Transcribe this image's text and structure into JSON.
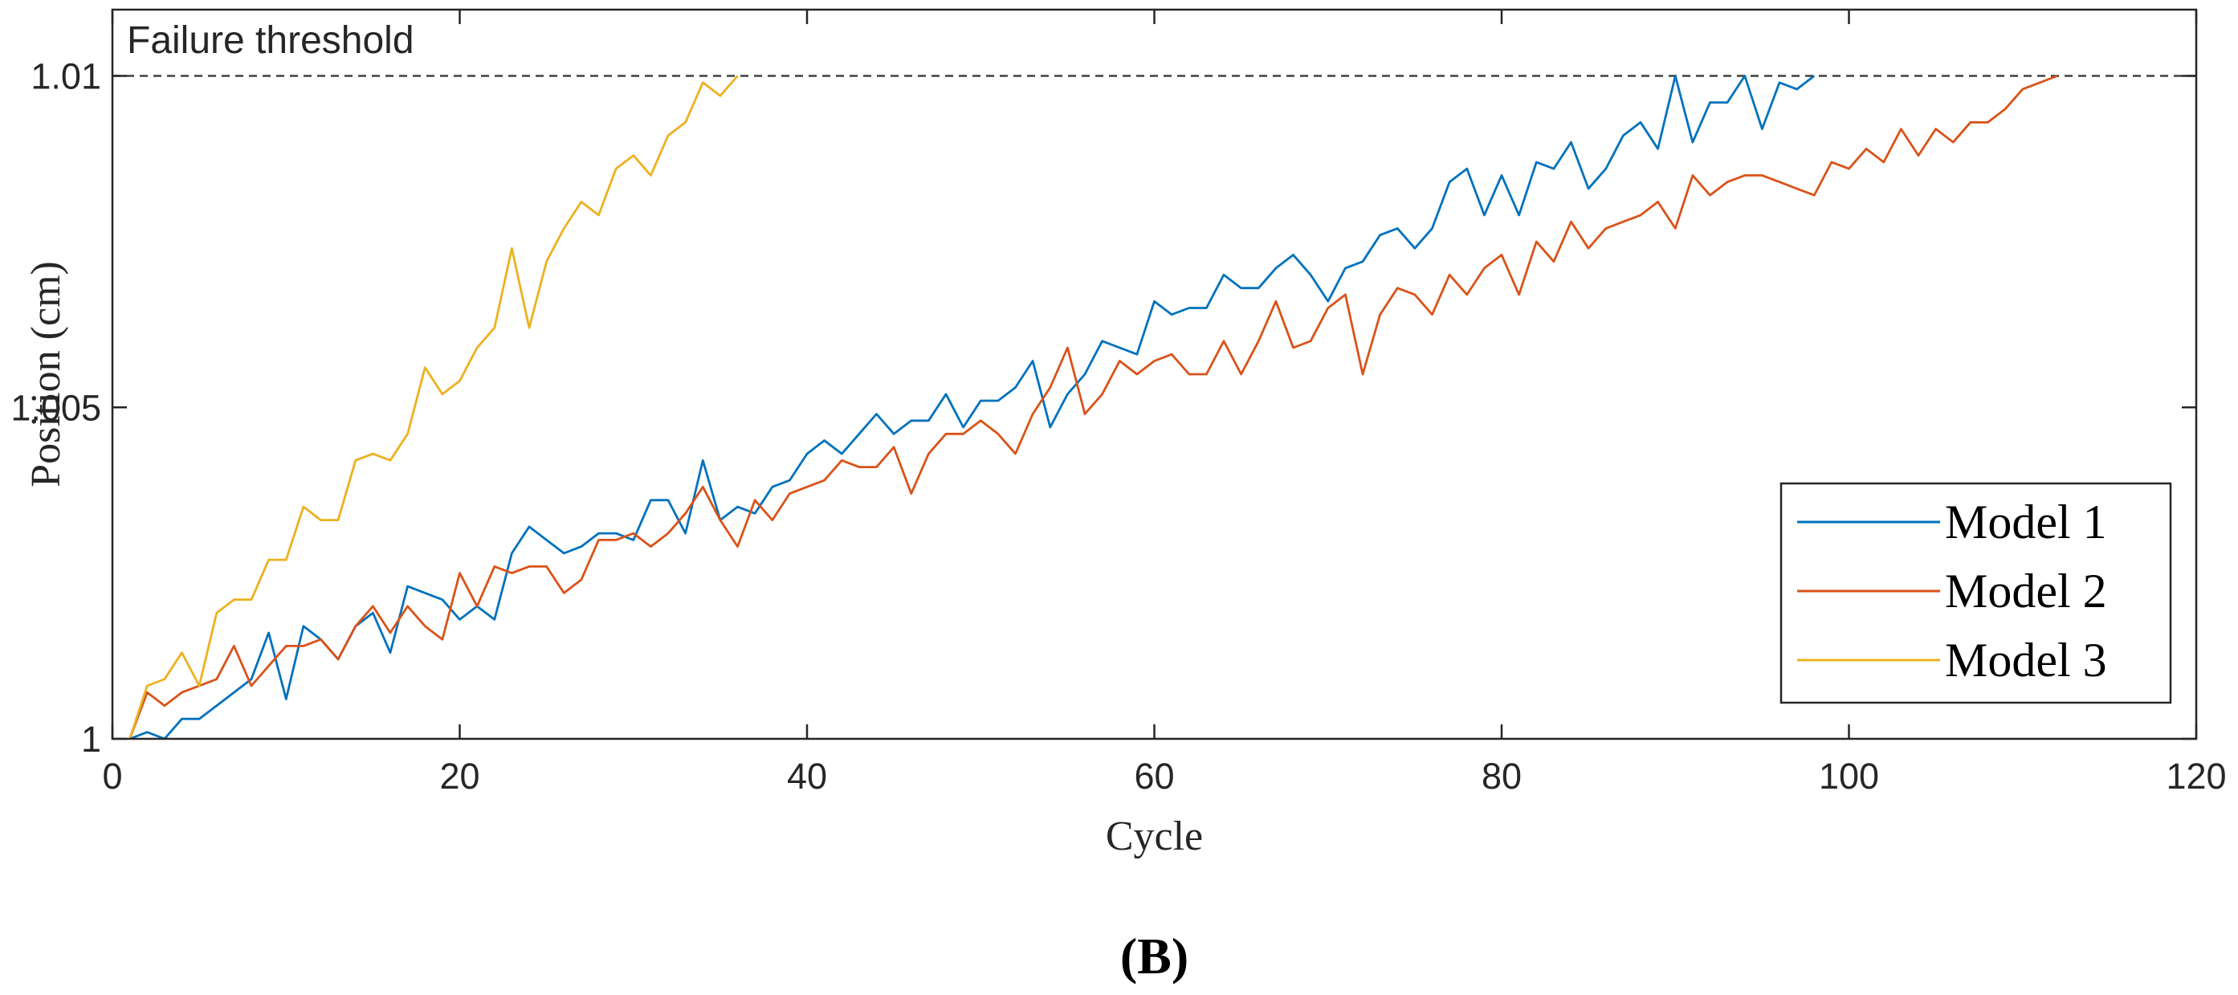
{
  "chart_data": {
    "type": "line",
    "title": "",
    "xlabel": "Cycle",
    "ylabel": "Position (cm)",
    "xlim": [
      0,
      120
    ],
    "ylim": [
      1.0,
      1.011
    ],
    "xticks": [
      0,
      20,
      40,
      60,
      80,
      100,
      120
    ],
    "xtick_labels": [
      "0",
      "20",
      "40",
      "60",
      "80",
      "100",
      "120"
    ],
    "yticks": [
      1.0,
      1.005,
      1.01
    ],
    "ytick_labels": [
      "1",
      "1.005",
      "1.01"
    ],
    "grid": false,
    "legend_position": "bottom-right",
    "threshold": {
      "value": 1.01,
      "label": "Failure threshold",
      "color": "#404040"
    },
    "panel_label": "(B)",
    "series": [
      {
        "name": "Model 1",
        "color": "#0072BD",
        "x": [
          1,
          2,
          3,
          4,
          5,
          6,
          7,
          8,
          9,
          10,
          11,
          12,
          13,
          14,
          15,
          16,
          17,
          18,
          19,
          20,
          21,
          22,
          23,
          24,
          25,
          26,
          27,
          28,
          29,
          30,
          31,
          32,
          33,
          34,
          35,
          36,
          37,
          38,
          39,
          40,
          41,
          42,
          43,
          44,
          45,
          46,
          47,
          48,
          49,
          50,
          51,
          52,
          53,
          54,
          55,
          56,
          57,
          58,
          59,
          60,
          61,
          62,
          63,
          64,
          65,
          66,
          67,
          68,
          69,
          70,
          71,
          72,
          73,
          74,
          75,
          76,
          77,
          78,
          79,
          80,
          81,
          82,
          83,
          84,
          85,
          86,
          87,
          88,
          89,
          90,
          91,
          92,
          93,
          94,
          95,
          96,
          97,
          98
        ],
        "y": [
          1.0,
          1.0001,
          1.0,
          1.0003,
          1.0003,
          1.0005,
          1.0007,
          1.0009,
          1.0016,
          1.0006,
          1.0017,
          1.0015,
          1.0012,
          1.0017,
          1.0019,
          1.0013,
          1.0023,
          1.0022,
          1.0021,
          1.0018,
          1.002,
          1.0018,
          1.0028,
          1.0032,
          1.003,
          1.0028,
          1.0029,
          1.0031,
          1.0031,
          1.003,
          1.0036,
          1.0036,
          1.0031,
          1.0042,
          1.0033,
          1.0035,
          1.0034,
          1.0038,
          1.0039,
          1.0043,
          1.0045,
          1.0043,
          1.0046,
          1.0049,
          1.0046,
          1.0048,
          1.0048,
          1.0052,
          1.0047,
          1.0051,
          1.0051,
          1.0053,
          1.0057,
          1.0047,
          1.0052,
          1.0055,
          1.006,
          1.0059,
          1.0058,
          1.0066,
          1.0064,
          1.0065,
          1.0065,
          1.007,
          1.0068,
          1.0068,
          1.0071,
          1.0073,
          1.007,
          1.0066,
          1.0071,
          1.0072,
          1.0076,
          1.0077,
          1.0074,
          1.0077,
          1.0084,
          1.0086,
          1.0079,
          1.0085,
          1.0079,
          1.0087,
          1.0086,
          1.009,
          1.0083,
          1.0086,
          1.0091,
          1.0093,
          1.0089,
          1.01,
          1.009,
          1.0096,
          1.0096,
          1.01,
          1.0092,
          1.0099,
          1.0098,
          1.01
        ]
      },
      {
        "name": "Model 2",
        "color": "#D95319",
        "x": [
          1,
          2,
          3,
          4,
          5,
          6,
          7,
          8,
          9,
          10,
          11,
          12,
          13,
          14,
          15,
          16,
          17,
          18,
          19,
          20,
          21,
          22,
          23,
          24,
          25,
          26,
          27,
          28,
          29,
          30,
          31,
          32,
          33,
          34,
          35,
          36,
          37,
          38,
          39,
          40,
          41,
          42,
          43,
          44,
          45,
          46,
          47,
          48,
          49,
          50,
          51,
          52,
          53,
          54,
          55,
          56,
          57,
          58,
          59,
          60,
          61,
          62,
          63,
          64,
          65,
          66,
          67,
          68,
          69,
          70,
          71,
          72,
          73,
          74,
          75,
          76,
          77,
          78,
          79,
          80,
          81,
          82,
          83,
          84,
          85,
          86,
          87,
          88,
          89,
          90,
          91,
          92,
          93,
          94,
          95,
          96,
          97,
          98,
          99,
          100,
          101,
          102,
          103,
          104,
          105,
          106,
          107,
          108,
          109,
          110,
          111,
          112
        ],
        "y": [
          1.0,
          1.0007,
          1.0005,
          1.0007,
          1.0008,
          1.0009,
          1.0014,
          1.0008,
          1.0011,
          1.0014,
          1.0014,
          1.0015,
          1.0012,
          1.0017,
          1.002,
          1.0016,
          1.002,
          1.0017,
          1.0015,
          1.0025,
          1.002,
          1.0026,
          1.0025,
          1.0026,
          1.0026,
          1.0022,
          1.0024,
          1.003,
          1.003,
          1.0031,
          1.0029,
          1.0031,
          1.0034,
          1.0038,
          1.0033,
          1.0029,
          1.0036,
          1.0033,
          1.0037,
          1.0038,
          1.0039,
          1.0042,
          1.0041,
          1.0041,
          1.0044,
          1.0037,
          1.0043,
          1.0046,
          1.0046,
          1.0048,
          1.0046,
          1.0043,
          1.0049,
          1.0053,
          1.0059,
          1.0049,
          1.0052,
          1.0057,
          1.0055,
          1.0057,
          1.0058,
          1.0055,
          1.0055,
          1.006,
          1.0055,
          1.006,
          1.0066,
          1.0059,
          1.006,
          1.0065,
          1.0067,
          1.0055,
          1.0064,
          1.0068,
          1.0067,
          1.0064,
          1.007,
          1.0067,
          1.0071,
          1.0073,
          1.0067,
          1.0075,
          1.0072,
          1.0078,
          1.0074,
          1.0077,
          1.0078,
          1.0079,
          1.0081,
          1.0077,
          1.0085,
          1.0082,
          1.0084,
          1.0085,
          1.0085,
          1.0084,
          1.0083,
          1.0082,
          1.0087,
          1.0086,
          1.0089,
          1.0087,
          1.0092,
          1.0088,
          1.0092,
          1.009,
          1.0093,
          1.0093,
          1.0095,
          1.0098,
          1.0099,
          1.01
        ]
      },
      {
        "name": "Model 3",
        "color": "#EDB120",
        "x": [
          1,
          2,
          3,
          4,
          5,
          6,
          7,
          8,
          9,
          10,
          11,
          12,
          13,
          14,
          15,
          16,
          17,
          18,
          19,
          20,
          21,
          22,
          23,
          24,
          25,
          26,
          27,
          28,
          29,
          30,
          31,
          32,
          33,
          34,
          35,
          36
        ],
        "y": [
          1.0,
          1.0008,
          1.0009,
          1.0013,
          1.0008,
          1.0019,
          1.0021,
          1.0021,
          1.0027,
          1.0027,
          1.0035,
          1.0033,
          1.0033,
          1.0042,
          1.0043,
          1.0042,
          1.0046,
          1.0056,
          1.0052,
          1.0054,
          1.0059,
          1.0062,
          1.0074,
          1.0062,
          1.0072,
          1.0077,
          1.0081,
          1.0079,
          1.0086,
          1.0088,
          1.0085,
          1.0091,
          1.0093,
          1.0099,
          1.0097,
          1.01
        ]
      }
    ]
  }
}
